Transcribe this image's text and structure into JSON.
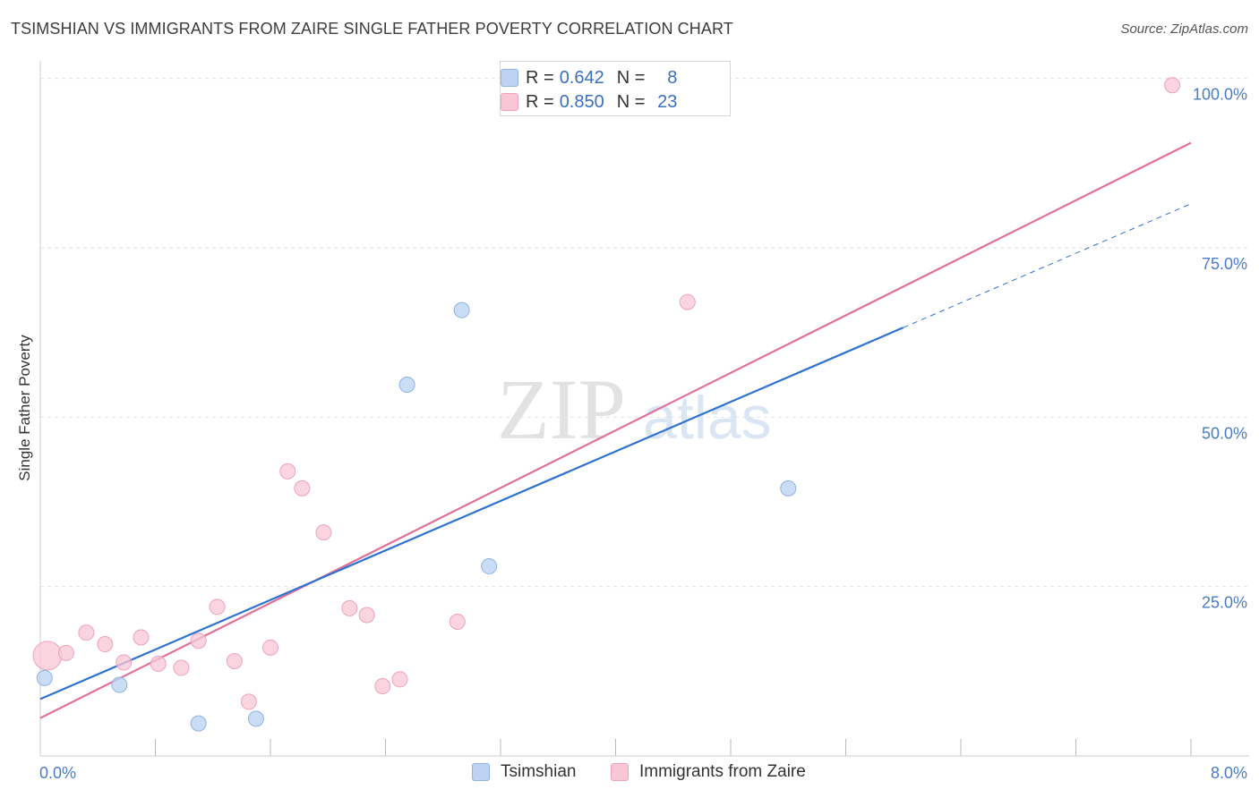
{
  "title": "TSIMSHIAN VS IMMIGRANTS FROM ZAIRE SINGLE FATHER POVERTY CORRELATION CHART",
  "source": "Source: ZipAtlas.com",
  "watermark": {
    "zip": "ZIP",
    "atlas": "atlas"
  },
  "legend": {
    "rows": [
      {
        "r_label": "R =",
        "r_value": "0.642",
        "n_label": "N =",
        "n_value": "8"
      },
      {
        "r_label": "R =",
        "r_value": "0.850",
        "n_label": "N =",
        "n_value": "23"
      }
    ]
  },
  "colors": {
    "tsimshian_fill": "#bcd4f2",
    "tsimshian_stroke": "#8fb3e3",
    "tsimshian_line": "#2f73d0",
    "zaire_fill": "#f8c6d4",
    "zaire_stroke": "#eea3b9",
    "zaire_line": "#e0719a",
    "grid": "#e2e2e2",
    "axis_label": "#4a7cc4"
  },
  "chart_data": {
    "type": "scatter",
    "title": "TSIMSHIAN VS IMMIGRANTS FROM ZAIRE SINGLE FATHER POVERTY CORRELATION CHART",
    "xlabel": "",
    "ylabel": "Single Father Poverty",
    "xlim": [
      0,
      8
    ],
    "ylim": [
      0,
      100
    ],
    "x_tick_labels": [
      "0.0%",
      "8.0%"
    ],
    "y_tick_labels": [
      "25.0%",
      "50.0%",
      "75.0%",
      "100.0%"
    ],
    "y_tick_values": [
      25,
      50,
      75,
      100
    ],
    "legend_position": "bottom-center",
    "series": [
      {
        "name": "Tsimshian",
        "r": 0.642,
        "n": 8,
        "points": [
          {
            "x": 0.03,
            "y": 11.5
          },
          {
            "x": 0.55,
            "y": 10.5
          },
          {
            "x": 1.1,
            "y": 4.8
          },
          {
            "x": 1.5,
            "y": 5.5
          },
          {
            "x": 2.55,
            "y": 54.8
          },
          {
            "x": 2.93,
            "y": 65.8
          },
          {
            "x": 3.12,
            "y": 28.0
          },
          {
            "x": 5.2,
            "y": 39.5
          }
        ],
        "trend": {
          "x0": 0,
          "y0": 8.4,
          "x1": 8,
          "y1": 81.5,
          "solid_until_x": 6.0
        }
      },
      {
        "name": "Immigrants from Zaire",
        "r": 0.85,
        "n": 23,
        "points": [
          {
            "x": 0.05,
            "y": 14.8,
            "big": true
          },
          {
            "x": 0.18,
            "y": 15.2
          },
          {
            "x": 0.32,
            "y": 18.2
          },
          {
            "x": 0.45,
            "y": 16.5
          },
          {
            "x": 0.58,
            "y": 13.8
          },
          {
            "x": 0.7,
            "y": 17.5
          },
          {
            "x": 0.82,
            "y": 13.6
          },
          {
            "x": 0.98,
            "y": 13.0
          },
          {
            "x": 1.1,
            "y": 17.0
          },
          {
            "x": 1.23,
            "y": 22.0
          },
          {
            "x": 1.35,
            "y": 14.0
          },
          {
            "x": 1.45,
            "y": 8.0
          },
          {
            "x": 1.6,
            "y": 16.0
          },
          {
            "x": 1.72,
            "y": 42.0
          },
          {
            "x": 1.82,
            "y": 39.5
          },
          {
            "x": 1.97,
            "y": 33.0
          },
          {
            "x": 2.15,
            "y": 21.8
          },
          {
            "x": 2.27,
            "y": 20.8
          },
          {
            "x": 2.38,
            "y": 10.3
          },
          {
            "x": 2.5,
            "y": 11.3
          },
          {
            "x": 2.9,
            "y": 19.8
          },
          {
            "x": 4.5,
            "y": 67.0
          },
          {
            "x": 7.87,
            "y": 99.0
          }
        ],
        "trend": {
          "x0": 0,
          "y0": 5.6,
          "x1": 8,
          "y1": 90.5
        }
      }
    ]
  }
}
